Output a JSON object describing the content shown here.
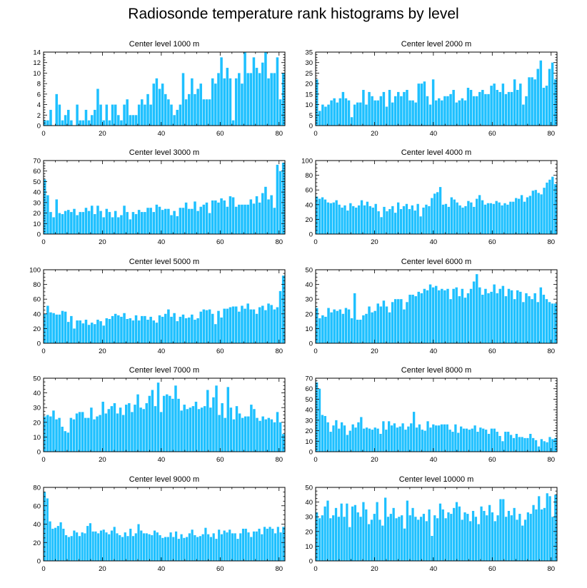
{
  "figure": {
    "title": "Radiosonde temperature rank histograms by level"
  },
  "colors": {
    "bar": "#1ec0ff",
    "bar_edge": "#ffffff",
    "axis": "#000000"
  },
  "chart_data": [
    {
      "type": "bar",
      "title": "Center level 1000 m",
      "xlim": [
        0,
        82
      ],
      "ylim": [
        0,
        14
      ],
      "xticks": [
        0,
        20,
        40,
        60,
        80
      ],
      "yticks": [
        0,
        2,
        4,
        6,
        8,
        10,
        12,
        14
      ],
      "values": [
        1,
        1,
        3,
        0,
        6,
        4,
        1,
        2,
        3,
        1,
        0,
        4,
        1,
        1,
        3,
        1,
        2,
        3,
        7,
        4,
        1,
        4,
        1,
        4,
        4,
        2,
        1,
        4,
        5,
        2,
        2,
        2,
        4,
        5,
        4,
        6,
        4,
        8,
        9,
        7,
        8,
        6,
        5,
        4,
        2,
        3,
        4,
        10,
        5,
        6,
        9,
        6,
        7,
        8,
        5,
        5,
        5,
        9,
        8,
        10,
        13,
        9,
        11,
        9,
        1,
        9,
        10,
        8,
        14,
        10,
        10,
        13,
        11,
        10,
        12,
        14,
        9,
        10,
        10,
        13,
        5,
        10
      ]
    },
    {
      "type": "bar",
      "title": "Center level 2000 m",
      "xlim": [
        0,
        82
      ],
      "ylim": [
        0,
        35
      ],
      "xticks": [
        0,
        20,
        40,
        60,
        80
      ],
      "yticks": [
        0,
        5,
        10,
        15,
        20,
        25,
        30,
        35
      ],
      "values": [
        22,
        7,
        10,
        9,
        10,
        12,
        13,
        11,
        13,
        16,
        13,
        12,
        4,
        10,
        11,
        11,
        17,
        10,
        16,
        14,
        12,
        12,
        14,
        16,
        9,
        17,
        11,
        14,
        16,
        14,
        16,
        17,
        12,
        12,
        11,
        20,
        20,
        21,
        14,
        10,
        22,
        12,
        13,
        12,
        14,
        14,
        15,
        17,
        11,
        12,
        13,
        12,
        18,
        17,
        14,
        14,
        16,
        17,
        15,
        15,
        19,
        20,
        17,
        16,
        20,
        15,
        16,
        16,
        22,
        17,
        20,
        10,
        14,
        23,
        23,
        22,
        27,
        31,
        18,
        19,
        27,
        30,
        22
      ]
    },
    {
      "type": "bar",
      "title": "Center level 3000 m",
      "xlim": [
        0,
        82
      ],
      "ylim": [
        0,
        70
      ],
      "xticks": [
        0,
        20,
        40,
        60,
        80
      ],
      "yticks": [
        0,
        10,
        20,
        30,
        40,
        50,
        60,
        70
      ],
      "values": [
        52,
        37,
        21,
        16,
        33,
        20,
        19,
        22,
        23,
        21,
        24,
        18,
        21,
        21,
        25,
        22,
        27,
        19,
        27,
        22,
        16,
        24,
        21,
        16,
        22,
        16,
        18,
        27,
        21,
        14,
        21,
        19,
        23,
        21,
        21,
        25,
        25,
        21,
        28,
        26,
        23,
        24,
        24,
        18,
        22,
        17,
        25,
        25,
        30,
        24,
        24,
        31,
        22,
        26,
        28,
        30,
        20,
        32,
        32,
        30,
        34,
        32,
        26,
        36,
        35,
        26,
        28,
        28,
        28,
        28,
        33,
        29,
        36,
        30,
        39,
        45,
        33,
        37,
        25,
        66,
        60,
        68
      ]
    },
    {
      "type": "bar",
      "title": "Center level 4000 m",
      "xlim": [
        0,
        82
      ],
      "ylim": [
        0,
        100
      ],
      "xticks": [
        0,
        20,
        40,
        60,
        80
      ],
      "yticks": [
        0,
        20,
        40,
        60,
        80,
        100
      ],
      "values": [
        51,
        48,
        50,
        47,
        43,
        42,
        43,
        46,
        40,
        36,
        39,
        32,
        42,
        38,
        36,
        39,
        46,
        39,
        44,
        38,
        36,
        41,
        31,
        23,
        37,
        31,
        34,
        38,
        29,
        43,
        34,
        38,
        41,
        34,
        39,
        32,
        41,
        24,
        36,
        40,
        38,
        49,
        55,
        57,
        64,
        40,
        41,
        37,
        50,
        47,
        43,
        39,
        36,
        38,
        45,
        43,
        37,
        48,
        53,
        46,
        40,
        42,
        42,
        41,
        45,
        43,
        39,
        42,
        40,
        44,
        44,
        49,
        48,
        53,
        44,
        50,
        52,
        59,
        60,
        56,
        54,
        63,
        70,
        74,
        78,
        68
      ]
    },
    {
      "type": "bar",
      "title": "Center level 5000 m",
      "xlim": [
        0,
        82
      ],
      "ylim": [
        0,
        100
      ],
      "xticks": [
        0,
        20,
        40,
        60,
        80
      ],
      "yticks": [
        0,
        20,
        40,
        60,
        80,
        100
      ],
      "values": [
        40,
        51,
        42,
        41,
        39,
        39,
        44,
        43,
        29,
        37,
        20,
        31,
        31,
        27,
        32,
        25,
        28,
        26,
        32,
        30,
        24,
        34,
        33,
        37,
        40,
        38,
        36,
        41,
        33,
        34,
        31,
        38,
        31,
        37,
        37,
        32,
        36,
        31,
        28,
        38,
        36,
        40,
        46,
        36,
        41,
        30,
        36,
        39,
        34,
        35,
        39,
        32,
        34,
        43,
        46,
        45,
        46,
        40,
        26,
        44,
        35,
        47,
        47,
        49,
        50,
        50,
        43,
        51,
        47,
        54,
        46,
        46,
        40,
        49,
        51,
        45,
        54,
        52,
        46,
        49,
        71,
        92
      ]
    },
    {
      "type": "bar",
      "title": "Center level 6000 m",
      "xlim": [
        0,
        82
      ],
      "ylim": [
        0,
        50
      ],
      "xticks": [
        0,
        20,
        40,
        60,
        80
      ],
      "yticks": [
        0,
        10,
        20,
        30,
        40,
        50
      ],
      "values": [
        24,
        17,
        19,
        18,
        24,
        21,
        23,
        22,
        23,
        20,
        24,
        23,
        17,
        34,
        16,
        16,
        19,
        20,
        25,
        21,
        22,
        27,
        25,
        29,
        25,
        21,
        28,
        30,
        30,
        30,
        23,
        28,
        33,
        33,
        32,
        35,
        34,
        37,
        36,
        40,
        38,
        39,
        36,
        37,
        36,
        37,
        30,
        37,
        38,
        32,
        37,
        31,
        34,
        37,
        42,
        47,
        38,
        33,
        37,
        34,
        35,
        40,
        34,
        37,
        39,
        32,
        37,
        36,
        30,
        36,
        35,
        28,
        34,
        32,
        30,
        34,
        28,
        38,
        33,
        30,
        28,
        27,
        27
      ]
    },
    {
      "type": "bar",
      "title": "Center level 7000 m",
      "xlim": [
        0,
        82
      ],
      "ylim": [
        0,
        50
      ],
      "xticks": [
        0,
        20,
        40,
        60,
        80
      ],
      "yticks": [
        0,
        10,
        20,
        30,
        40,
        50
      ],
      "values": [
        24,
        25,
        24,
        28,
        22,
        23,
        17,
        14,
        13,
        23,
        22,
        26,
        27,
        27,
        23,
        23,
        30,
        22,
        24,
        25,
        34,
        26,
        29,
        31,
        33,
        26,
        30,
        25,
        32,
        33,
        27,
        32,
        39,
        30,
        29,
        33,
        38,
        42,
        31,
        47,
        27,
        38,
        39,
        38,
        36,
        45,
        36,
        28,
        32,
        29,
        30,
        31,
        34,
        29,
        30,
        31,
        42,
        30,
        37,
        45,
        25,
        33,
        23,
        44,
        30,
        22,
        31,
        26,
        23,
        24,
        24,
        32,
        29,
        23,
        21,
        24,
        22,
        23,
        22,
        20,
        27,
        20,
        12
      ]
    },
    {
      "type": "bar",
      "title": "Center level 8000 m",
      "xlim": [
        0,
        82
      ],
      "ylim": [
        0,
        70
      ],
      "xticks": [
        0,
        20,
        40,
        60,
        80
      ],
      "yticks": [
        0,
        10,
        20,
        30,
        40,
        50,
        60,
        70
      ],
      "values": [
        66,
        60,
        35,
        34,
        28,
        19,
        25,
        30,
        22,
        28,
        25,
        16,
        20,
        26,
        23,
        28,
        33,
        22,
        23,
        22,
        21,
        23,
        22,
        17,
        29,
        21,
        29,
        25,
        27,
        23,
        24,
        27,
        21,
        24,
        27,
        38,
        23,
        26,
        21,
        20,
        29,
        23,
        26,
        25,
        25,
        26,
        26,
        26,
        21,
        19,
        26,
        18,
        24,
        22,
        22,
        21,
        22,
        25,
        19,
        23,
        22,
        21,
        17,
        22,
        22,
        19,
        15,
        10,
        19,
        19,
        16,
        13,
        17,
        14,
        14,
        13,
        13,
        17,
        13,
        11,
        5,
        12,
        10,
        9,
        14,
        12,
        13
      ]
    },
    {
      "type": "bar",
      "title": "Center level 9000 m",
      "xlim": [
        0,
        82
      ],
      "ylim": [
        0,
        80
      ],
      "xticks": [
        0,
        20,
        40,
        60,
        80
      ],
      "yticks": [
        0,
        20,
        40,
        60,
        80
      ],
      "values": [
        75,
        68,
        43,
        35,
        36,
        38,
        42,
        35,
        28,
        26,
        27,
        33,
        31,
        27,
        31,
        30,
        38,
        41,
        32,
        32,
        30,
        33,
        34,
        31,
        29,
        33,
        37,
        30,
        28,
        26,
        31,
        27,
        35,
        27,
        30,
        40,
        33,
        30,
        30,
        29,
        28,
        33,
        31,
        28,
        25,
        26,
        26,
        31,
        26,
        32,
        24,
        29,
        25,
        26,
        30,
        34,
        28,
        26,
        27,
        29,
        36,
        29,
        26,
        30,
        24,
        34,
        29,
        33,
        31,
        34,
        30,
        30,
        24,
        30,
        35,
        35,
        31,
        26,
        32,
        32,
        35,
        29,
        37,
        35,
        37,
        35,
        30,
        37,
        31,
        37
      ]
    },
    {
      "type": "bar",
      "title": "Center level 10000 m",
      "xlim": [
        0,
        82
      ],
      "ylim": [
        0,
        50
      ],
      "xticks": [
        0,
        20,
        40,
        60,
        80
      ],
      "yticks": [
        0,
        10,
        20,
        30,
        40,
        50
      ],
      "values": [
        33,
        29,
        31,
        37,
        41,
        29,
        31,
        36,
        30,
        39,
        30,
        39,
        23,
        37,
        38,
        33,
        30,
        40,
        35,
        25,
        28,
        32,
        40,
        28,
        24,
        43,
        30,
        32,
        36,
        29,
        30,
        31,
        22,
        41,
        31,
        36,
        30,
        28,
        30,
        32,
        27,
        35,
        17,
        31,
        29,
        39,
        35,
        29,
        33,
        32,
        36,
        40,
        37,
        28,
        33,
        32,
        27,
        34,
        30,
        25,
        37,
        34,
        31,
        38,
        33,
        27,
        31,
        42,
        42,
        30,
        34,
        31,
        36,
        28,
        32,
        24,
        28,
        33,
        32,
        38,
        35,
        44,
        35,
        36,
        46,
        44,
        30,
        45
      ]
    }
  ]
}
